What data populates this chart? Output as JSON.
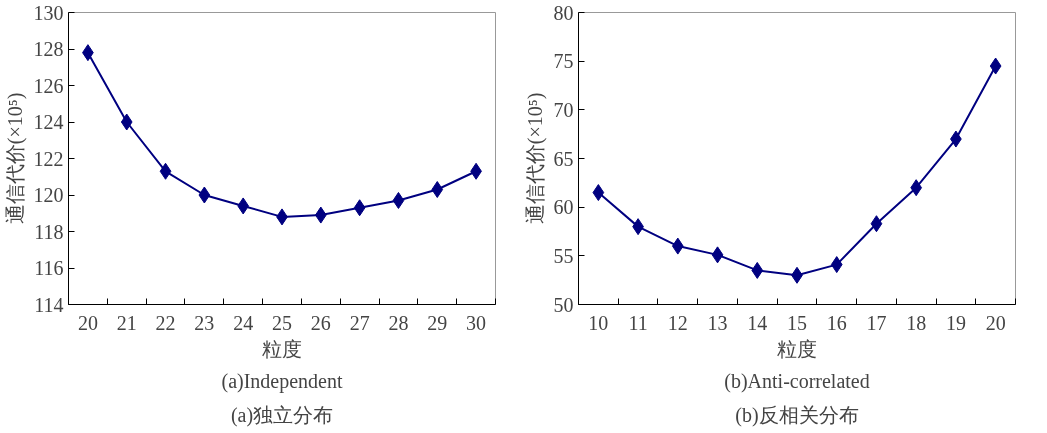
{
  "chart_data": [
    {
      "type": "line",
      "title": "(a)Independent",
      "subtitle": "(a)独立分布",
      "xlabel": "粒度",
      "ylabel": "通信代价(×10⁵)",
      "categories": [
        "20",
        "21",
        "22",
        "23",
        "24",
        "25",
        "26",
        "27",
        "28",
        "29",
        "30"
      ],
      "series": [
        {
          "color": "#000080",
          "values": [
            127.8,
            124.0,
            121.3,
            120.0,
            119.4,
            118.8,
            118.9,
            119.3,
            119.7,
            120.3,
            121.3
          ]
        }
      ],
      "ylim": [
        114,
        130
      ],
      "yticks": [
        114,
        116,
        118,
        120,
        122,
        124,
        126,
        128,
        130
      ],
      "marker": "diamond",
      "line_style": "solid",
      "grid": false
    },
    {
      "type": "line",
      "title": "(b)Anti-correlated",
      "subtitle": "(b)反相关分布",
      "xlabel": "粒度",
      "ylabel": "通信代价(×10⁵)",
      "categories": [
        "10",
        "11",
        "12",
        "13",
        "14",
        "15",
        "16",
        "17",
        "18",
        "19",
        "20"
      ],
      "series": [
        {
          "color": "#000080",
          "values": [
            61.5,
            58.0,
            56.0,
            55.1,
            53.5,
            53.0,
            54.1,
            58.3,
            62.0,
            67.0,
            74.5
          ]
        }
      ],
      "ylim": [
        50,
        80
      ],
      "yticks": [
        50,
        55,
        60,
        65,
        70,
        75,
        80
      ],
      "marker": "diamond",
      "line_style": "solid",
      "grid": false
    }
  ]
}
